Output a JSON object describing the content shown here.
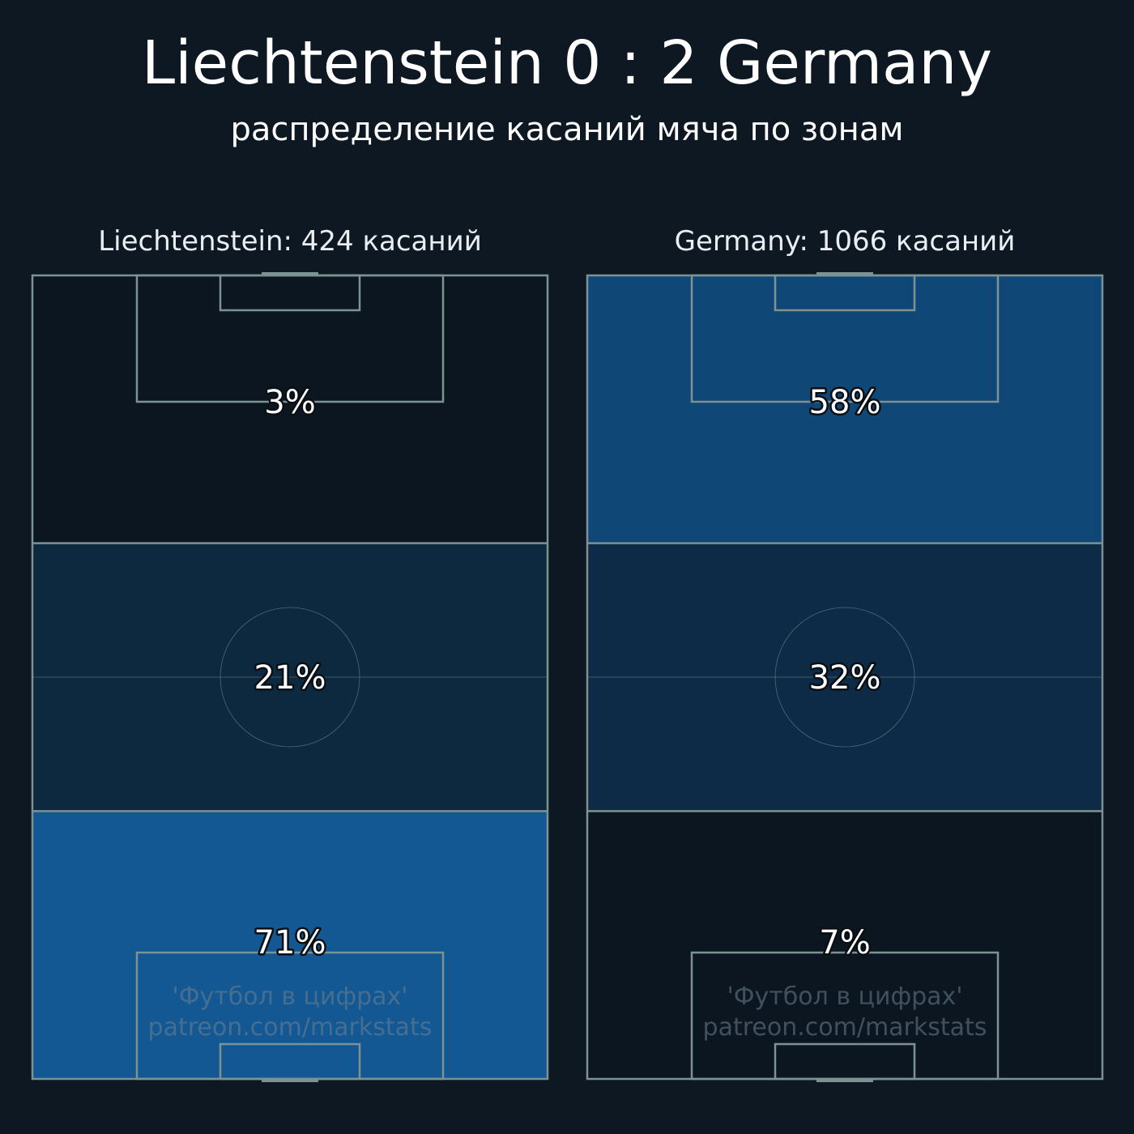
{
  "header": {
    "title": "Liechtenstein 0 : 2 Germany",
    "subtitle": "распределение касаний мяча по зонам"
  },
  "watermark": {
    "line1": "'Футбол в цифрах'",
    "line2": "patreon.com/markstats"
  },
  "colors": {
    "background": "#0e1822",
    "pitch_lines": "#7d9292",
    "zone_low": "#0b1620",
    "zone_mid": "#0d2940",
    "zone_high": "#125890"
  },
  "chart_data": [
    {
      "type": "heatmap",
      "title": "Liechtenstein: 424 касаний",
      "team": "Liechtenstein",
      "touches": 424,
      "zones": [
        "attacking third",
        "middle third",
        "defensive third"
      ],
      "values": [
        3,
        21,
        71
      ],
      "labels": [
        "3%",
        "21%",
        "71%"
      ],
      "colors": [
        "#0b1620",
        "#0d2940",
        "#135892"
      ]
    },
    {
      "type": "heatmap",
      "title": "Germany: 1066 касаний",
      "team": "Germany",
      "touches": 1066,
      "zones": [
        "attacking third",
        "middle third",
        "defensive third"
      ],
      "values": [
        58,
        32,
        7
      ],
      "labels": [
        "58%",
        "32%",
        "7%"
      ],
      "colors": [
        "#0f4876",
        "#0d2b46",
        "#0b1620"
      ]
    }
  ]
}
